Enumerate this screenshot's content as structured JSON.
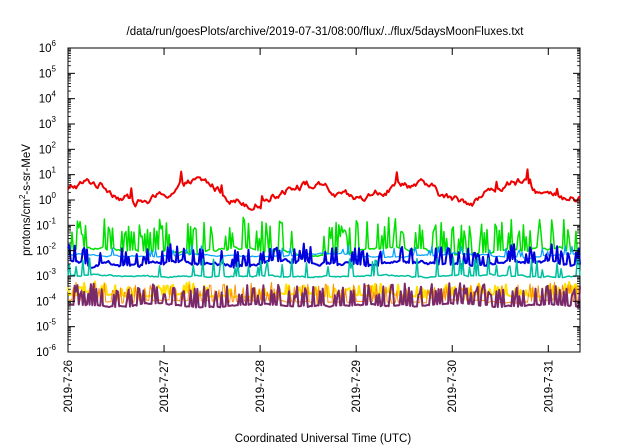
{
  "chart_data": {
    "type": "line",
    "title": "/data/run/goesPlots/archive/2019-07-31/08:00/flux/../flux/5daysMoonFluxes.txt",
    "xlabel": "Coordinated Universal Time (UTC)",
    "ylabel_main": "protons/cm",
    "ylabel_sup": "2",
    "ylabel_rest": "-s-sr-MeV",
    "x_ticks": [
      {
        "label": "2019-7-26",
        "day": 0
      },
      {
        "label": "2019-7-27",
        "day": 1
      },
      {
        "label": "2019-7-28",
        "day": 2
      },
      {
        "label": "2019-7-29",
        "day": 3
      },
      {
        "label": "2019-7-30",
        "day": 4
      },
      {
        "label": "2019-7-31",
        "day": 5
      }
    ],
    "xlim_days": [
      0,
      5.33
    ],
    "y_scale": "log",
    "y_ticks": [
      {
        "base": "10",
        "exp": "-6",
        "value": -6
      },
      {
        "base": "10",
        "exp": "-5",
        "value": -5
      },
      {
        "base": "10",
        "exp": "-4",
        "value": -4
      },
      {
        "base": "10",
        "exp": "-3",
        "value": -3
      },
      {
        "base": "10",
        "exp": "-2",
        "value": -2
      },
      {
        "base": "10",
        "exp": "-1",
        "value": -1
      },
      {
        "base": "10",
        "exp": "0",
        "value": 0
      },
      {
        "base": "10",
        "exp": "1",
        "value": 1
      },
      {
        "base": "10",
        "exp": "2",
        "value": 2
      },
      {
        "base": "10",
        "exp": "3",
        "value": 3
      },
      {
        "base": "10",
        "exp": "4",
        "value": 4
      },
      {
        "base": "10",
        "exp": "5",
        "value": 5
      },
      {
        "base": "10",
        "exp": "6",
        "value": 6
      }
    ],
    "ylim_log10": [
      -6,
      6
    ],
    "grid": false,
    "series": [
      {
        "color": "#ee0000",
        "width": 2,
        "base": 0.3,
        "amp": 0.35,
        "period": 1.1,
        "phase": 0.2,
        "noise": 0.25,
        "spike_rate": 0.02,
        "spike_size": 0.4
      },
      {
        "color": "#00e000",
        "width": 1.5,
        "base": -2.0,
        "amp": 0.1,
        "period": 1.5,
        "phase": 0.0,
        "noise": 0.1,
        "spike_rate": 0.35,
        "spike_size": 1.0
      },
      {
        "color": "#00a0ff",
        "width": 1.2,
        "base": -2.2,
        "amp": 0.05,
        "period": 1.3,
        "phase": 1.0,
        "noise": 0.05,
        "spike_rate": 0.08,
        "spike_size": 0.3
      },
      {
        "color": "#0000dd",
        "width": 2,
        "base": -2.5,
        "amp": 0.05,
        "period": 1.2,
        "phase": 2.0,
        "noise": 0.12,
        "spike_rate": 0.25,
        "spike_size": 0.55
      },
      {
        "color": "#00c0a0",
        "width": 1.5,
        "base": -3.0,
        "amp": 0.03,
        "period": 1.4,
        "phase": 0.5,
        "noise": 0.05,
        "spike_rate": 0.15,
        "spike_size": 0.6
      },
      {
        "color": "#ffe000",
        "width": 2,
        "base": -3.75,
        "amp": 0.05,
        "period": 1.0,
        "phase": 0.0,
        "noise": 0.06,
        "spike_rate": 0.3,
        "spike_size": 0.35
      },
      {
        "color": "#ff9000",
        "width": 1,
        "base": -4.0,
        "amp": 0.03,
        "period": 1.0,
        "phase": 0.8,
        "noise": 0.05,
        "spike_rate": 0.3,
        "spike_size": 0.6
      },
      {
        "color": "#7a2a6a",
        "width": 2,
        "base": -4.15,
        "amp": 0.03,
        "period": 1.0,
        "phase": 1.6,
        "noise": 0.05,
        "spike_rate": 0.35,
        "spike_size": 0.7
      }
    ]
  }
}
